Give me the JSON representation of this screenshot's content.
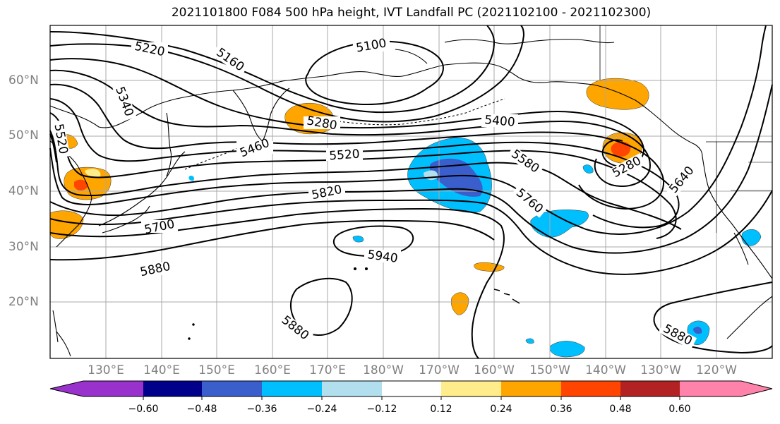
{
  "title": "2021101800 F084 500 hPa height, IVT Landfall PC (2021102100 - 2021102300)",
  "lat_labels": [
    "60°N",
    "50°N",
    "40°N",
    "30°N",
    "20°N"
  ],
  "lon_labels": [
    "130°E",
    "140°E",
    "150°E",
    "160°E",
    "170°E",
    "180°W",
    "170°W",
    "160°W",
    "150°W",
    "140°W",
    "130°W",
    "120°W"
  ],
  "contour_labels": [
    "5220",
    "5160",
    "5100",
    "5340",
    "5520",
    "5280",
    "5460",
    "5400",
    "5520",
    "5580",
    "5280",
    "5820",
    "5760",
    "5640",
    "5700",
    "5940",
    "5880",
    "5880",
    "5880"
  ],
  "colorbar": {
    "ticks": [
      "−0.60",
      "−0.48",
      "−0.36",
      "−0.24",
      "−0.12",
      "0.12",
      "0.24",
      "0.36",
      "0.48",
      "0.60"
    ],
    "colors": [
      "#9932cc",
      "#00008b",
      "#3a5fcd",
      "#00bfff",
      "#b2dfee",
      "#ffffff",
      "#ffec8b",
      "#ffa500",
      "#ff4500",
      "#b22222",
      "#ff82ab"
    ]
  },
  "map_data": {
    "field": "500 hPa geopotential height (m) with IVT landfall principal component shading",
    "lat_range": [
      10,
      70
    ],
    "lon_range": [
      120,
      250
    ]
  }
}
